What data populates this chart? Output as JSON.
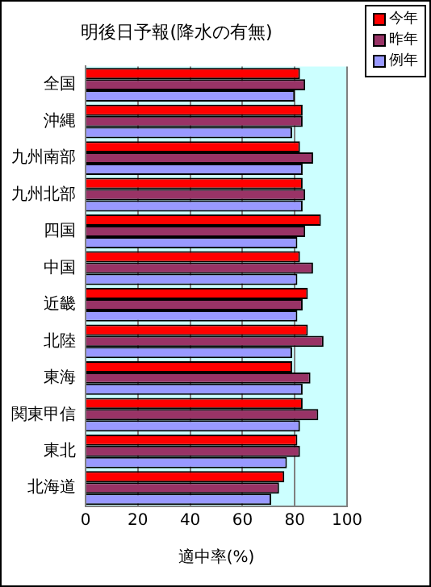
{
  "chart_data": {
    "type": "bar",
    "orientation": "horizontal",
    "title": "明後日予報(降水の有無)",
    "xlabel": "適中率(%)",
    "categories": [
      "全国",
      "沖縄",
      "九州南部",
      "九州北部",
      "四国",
      "中国",
      "近畿",
      "北陸",
      "東海",
      "関東甲信",
      "東北",
      "北海道"
    ],
    "series": [
      {
        "name": "今年",
        "color": "#ff0000",
        "values": [
          82,
          83,
          82,
          83,
          90,
          82,
          85,
          85,
          79,
          83,
          81,
          76
        ]
      },
      {
        "name": "昨年",
        "color": "#993366",
        "values": [
          84,
          83,
          87,
          84,
          84,
          87,
          83,
          91,
          86,
          89,
          82,
          74
        ]
      },
      {
        "name": "例年",
        "color": "#9999ff",
        "values": [
          80,
          79,
          83,
          83,
          81,
          81,
          81,
          79,
          83,
          82,
          77,
          71
        ]
      }
    ],
    "xlim": [
      0,
      100
    ],
    "xticks": [
      0,
      20,
      40,
      60,
      80,
      100
    ],
    "grid": "x",
    "legend": "top right"
  }
}
